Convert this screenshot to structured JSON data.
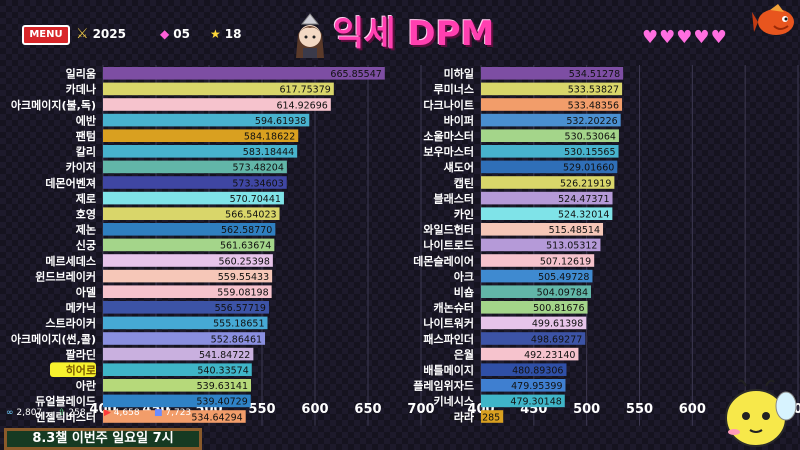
{
  "header": {
    "menu_label": "MENU",
    "stat_sword": "2025",
    "stat_gem": "05",
    "stat_star": "18",
    "title": "익세 DPM",
    "hearts": 5
  },
  "footer": {
    "stat_1": "2,807",
    "stat_2": "258",
    "stat_3": "4,658",
    "stat_4": "7,723",
    "banner": "8.3챌 이번주 일요일 7시"
  },
  "colors": {
    "title": "#ff3fb0",
    "highlight_label": "#f7f22e"
  },
  "chart_data": [
    {
      "type": "bar",
      "orientation": "horizontal",
      "xlim": [
        400,
        700
      ],
      "xticks": [
        400,
        450,
        500,
        550,
        600,
        650,
        700
      ],
      "highlight": "히어로",
      "categories": [
        "일리움",
        "카데나",
        "아크메이지(불,독)",
        "에반",
        "팬텀",
        "칼리",
        "카이저",
        "데몬어벤져",
        "제로",
        "호영",
        "제논",
        "신궁",
        "메르세데스",
        "윈드브레이커",
        "아델",
        "메카닉",
        "스트라이커",
        "아크메이지(썬,콜)",
        "팔라딘",
        "히어로",
        "아란",
        "듀얼블레이드",
        "엔젤릭버스터"
      ],
      "values": [
        665.85547,
        617.75379,
        614.92696,
        594.61938,
        584.18622,
        583.18444,
        573.48204,
        573.34603,
        570.70441,
        566.54023,
        562.5877,
        561.63674,
        560.25398,
        559.55433,
        559.08198,
        556.57719,
        555.18651,
        552.86461,
        541.84722,
        540.33574,
        539.63141,
        539.40729,
        534.64294
      ],
      "value_labels": [
        "665.85547",
        "617.75379",
        "614.92696",
        "594.61938",
        "584.18622",
        "583.18444",
        "573.48204",
        "573.34603",
        "570.70441",
        "566.54023",
        "562.58770",
        "561.63674",
        "560.25398",
        "559.55433",
        "559.08198",
        "556.57719",
        "555.18651",
        "552.86461",
        "541.84722",
        "540.33574",
        "539.63141",
        "539.40729",
        "534.64294"
      ],
      "colors": [
        "#7d4ea3",
        "#d9d66a",
        "#f6c3cd",
        "#48b2cf",
        "#d9a020",
        "#47b3cd",
        "#62b6a8",
        "#3f46a3",
        "#7fe3e8",
        "#d9d66a",
        "#2f7fc0",
        "#a4d58a",
        "#e7c4ea",
        "#f6c7b8",
        "#f6c3cd",
        "#3c53a6",
        "#46a9d4",
        "#8a8fe0",
        "#c9b0df",
        "#3fb5c8",
        "#b6d97a",
        "#2f82c6",
        "#f29d6a"
      ]
    },
    {
      "type": "bar",
      "orientation": "horizontal",
      "xlim": [
        400,
        700
      ],
      "xticks": [
        400,
        450,
        500,
        550,
        600,
        650,
        700
      ],
      "categories": [
        "미하일",
        "루미너스",
        "다크나이트",
        "바이퍼",
        "소울마스터",
        "보우마스터",
        "섀도어",
        "캡틴",
        "블래스터",
        "카인",
        "와일드헌터",
        "나이트로드",
        "데몬슬레이어",
        "아크",
        "비숍",
        "캐논슈터",
        "나이트워커",
        "패스파인더",
        "은월",
        "배틀메이지",
        "플레임위자드",
        "키네시스",
        "라라"
      ],
      "values": [
        534.51278,
        533.53827,
        533.48356,
        532.20226,
        530.53064,
        530.15565,
        529.0166,
        526.21919,
        524.47371,
        524.32014,
        515.48514,
        513.05312,
        507.12619,
        505.49728,
        504.09784,
        500.81676,
        499.61398,
        498.69277,
        492.2314,
        480.89306,
        479.95399,
        479.30148,
        421.01285
      ],
      "value_labels": [
        "534.51278",
        "533.53827",
        "533.48356",
        "532.20226",
        "530.53064",
        "530.15565",
        "529.01660",
        "526.21919",
        "524.47371",
        "524.32014",
        "515.48514",
        "513.05312",
        "507.12619",
        "505.49728",
        "504.09784",
        "500.81676",
        "499.61398",
        "498.69277",
        "492.23140",
        "480.89306",
        "479.95399",
        "479.30148",
        "421.01285"
      ],
      "colors": [
        "#7d4ea3",
        "#d9d66a",
        "#f29d6a",
        "#4a8fd0",
        "#a4d58a",
        "#47b3cd",
        "#2f6fb8",
        "#d9d66a",
        "#b59ad8",
        "#7fe3e8",
        "#f6c7b8",
        "#b59ad8",
        "#f6c3cd",
        "#3f8ad0",
        "#62b6a8",
        "#a4d58a",
        "#e7c4ea",
        "#3c53a6",
        "#f6c3cd",
        "#2f4fa6",
        "#3f7fd0",
        "#3fb5c8",
        "#d9a020"
      ]
    }
  ]
}
